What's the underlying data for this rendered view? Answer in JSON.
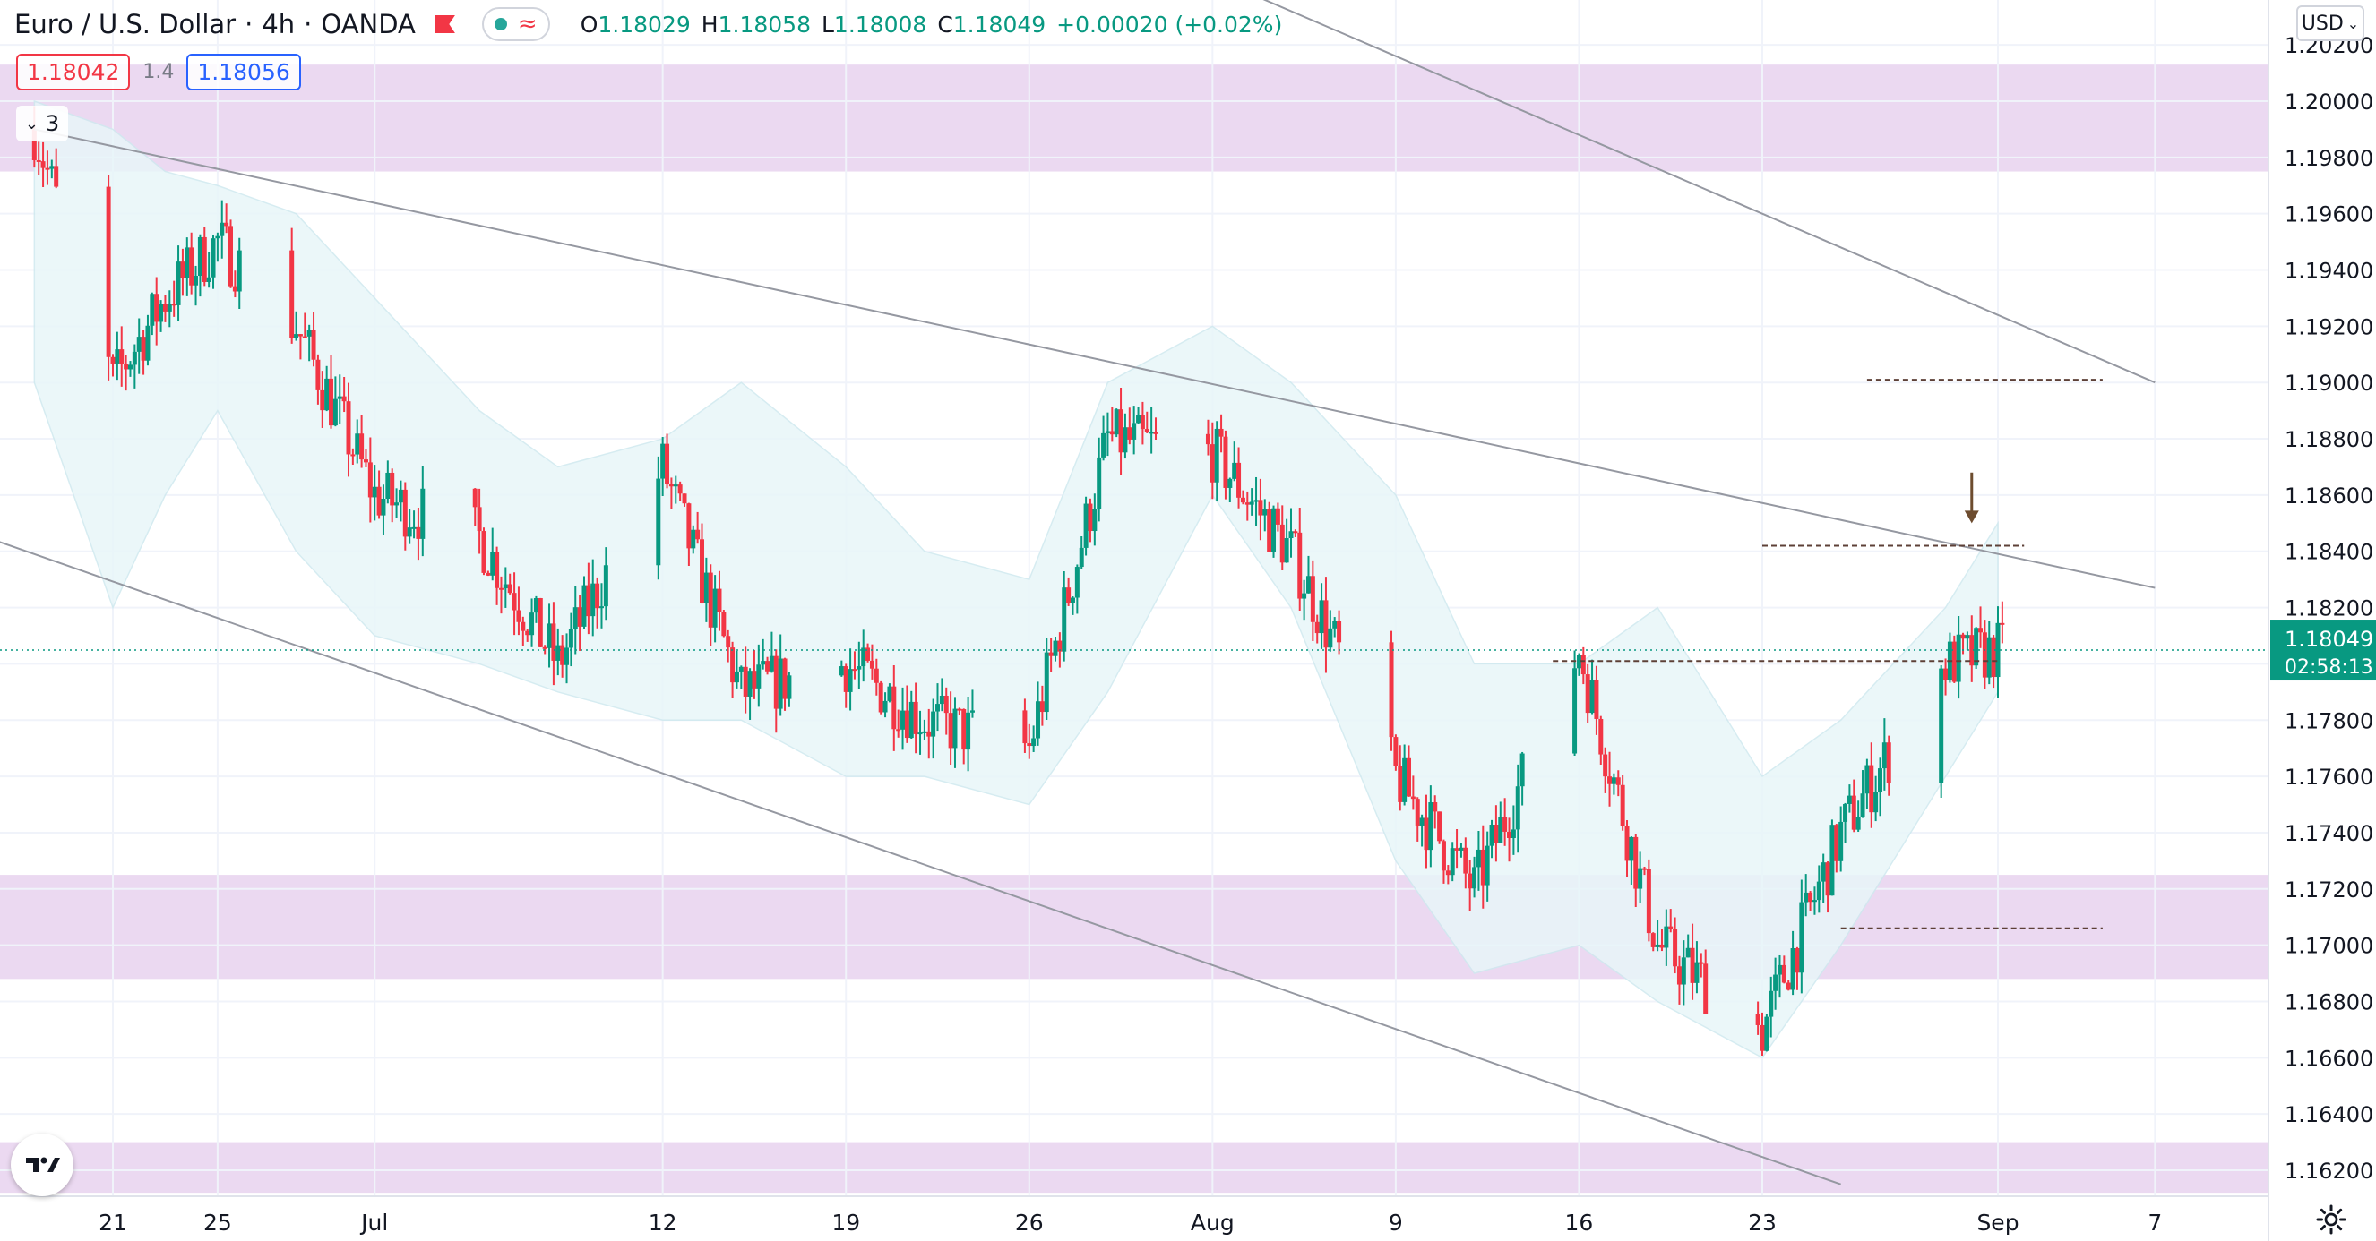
{
  "header": {
    "symbol": "Euro / U.S. Dollar",
    "interval": "4h",
    "broker": "OANDA",
    "ohlc": {
      "o_label": "O",
      "o": "1.18029",
      "h_label": "H",
      "h": "1.18058",
      "l_label": "L",
      "l": "1.18008",
      "c_label": "C",
      "c": "1.18049",
      "change": "+0.00020 (+0.02%)"
    }
  },
  "quote": {
    "sell": "1.18042",
    "spread": "1.4",
    "buy": "1.18056"
  },
  "indicators": {
    "collapsed_count": "3"
  },
  "currency": "USD",
  "colors": {
    "up": "#089981",
    "down": "#f23645",
    "zone": "#e9d5ef",
    "band": "#e8f6f9",
    "text": "#131722",
    "axis": "#787b86"
  },
  "icons": {
    "logo": "tradingview-logo-icon",
    "settings": "gear-icon",
    "flag": "flag-icon",
    "collapse": "chevron-down-icon"
  },
  "chart_data": {
    "type": "candlestick",
    "y_ticks": [
      "1.16200",
      "1.16400",
      "1.16600",
      "1.16800",
      "1.17000",
      "1.17200",
      "1.17400",
      "1.17600",
      "1.17800",
      "1.18000",
      "1.18200",
      "1.18400",
      "1.18600",
      "1.18800",
      "1.19000",
      "1.19200",
      "1.19400",
      "1.19600",
      "1.19800",
      "1.20000",
      "1.20200"
    ],
    "x_ticks": [
      {
        "label": "21",
        "date": "2021-06-21"
      },
      {
        "label": "25",
        "date": "2021-06-25"
      },
      {
        "label": "Jul",
        "date": "2021-07-01"
      },
      {
        "label": "12",
        "date": "2021-07-12"
      },
      {
        "label": "19",
        "date": "2021-07-19"
      },
      {
        "label": "26",
        "date": "2021-07-26"
      },
      {
        "label": "Aug",
        "date": "2021-08-02"
      },
      {
        "label": "9",
        "date": "2021-08-09"
      },
      {
        "label": "16",
        "date": "2021-08-16"
      },
      {
        "label": "23",
        "date": "2021-08-23"
      },
      {
        "label": "Sep",
        "date": "2021-09-01"
      },
      {
        "label": "7",
        "date": "2021-09-07"
      }
    ],
    "last_price": "1.18049",
    "countdown": "02:58:13",
    "zones": [
      {
        "from": 1.1975,
        "to": 1.2013
      },
      {
        "from": 1.1688,
        "to": 1.1725
      },
      {
        "from": 1.1612,
        "to": 1.163
      }
    ],
    "trendlines": [
      {
        "from": [
          "2021-06-18",
          1.199
        ],
        "to": [
          "2021-09-07",
          1.1827
        ]
      },
      {
        "from": [
          "2021-06-14",
          1.1852
        ],
        "to": [
          "2021-08-26",
          1.1615
        ]
      },
      {
        "from": [
          "2021-07-24",
          1.208
        ],
        "to": [
          "2021-09-07",
          1.19
        ]
      }
    ],
    "horizontal_levels": [
      {
        "price": 1.1901,
        "from": "2021-08-27",
        "to": "2021-09-05"
      },
      {
        "price": 1.1842,
        "from": "2021-08-23",
        "to": "2021-09-02"
      },
      {
        "price": 1.1801,
        "from": "2021-08-15",
        "to": "2021-09-01"
      },
      {
        "price": 1.1706,
        "from": "2021-08-26",
        "to": "2021-09-05"
      }
    ],
    "arrow": {
      "date": "2021-08-31",
      "price_top": 1.1868,
      "price_bottom": 1.185
    },
    "bollinger": {
      "x": [
        "2021-06-18",
        "2021-06-21",
        "2021-06-23",
        "2021-06-25",
        "2021-06-28",
        "2021-07-01",
        "2021-07-05",
        "2021-07-08",
        "2021-07-12",
        "2021-07-15",
        "2021-07-19",
        "2021-07-22",
        "2021-07-26",
        "2021-07-29",
        "2021-08-02",
        "2021-08-05",
        "2021-08-09",
        "2021-08-12",
        "2021-08-16",
        "2021-08-19",
        "2021-08-23",
        "2021-08-26",
        "2021-08-30",
        "2021-09-01"
      ],
      "upper": [
        1.2,
        1.199,
        1.1975,
        1.197,
        1.196,
        1.193,
        1.189,
        1.187,
        1.188,
        1.19,
        1.187,
        1.184,
        1.183,
        1.19,
        1.192,
        1.19,
        1.186,
        1.18,
        1.18,
        1.182,
        1.176,
        1.178,
        1.182,
        1.185
      ],
      "lower": [
        1.19,
        1.182,
        1.186,
        1.189,
        1.184,
        1.181,
        1.18,
        1.179,
        1.178,
        1.178,
        1.176,
        1.176,
        1.175,
        1.179,
        1.186,
        1.182,
        1.173,
        1.169,
        1.17,
        1.168,
        1.166,
        1.17,
        1.176,
        1.179
      ]
    },
    "candles": {
      "x": [
        "2021-06-18",
        "2021-06-21",
        "2021-06-23",
        "2021-06-25",
        "2021-06-28",
        "2021-07-01",
        "2021-07-05",
        "2021-07-08",
        "2021-07-12",
        "2021-07-15",
        "2021-07-19",
        "2021-07-22",
        "2021-07-26",
        "2021-07-29",
        "2021-08-02",
        "2021-08-05",
        "2021-08-09",
        "2021-08-12",
        "2021-08-16",
        "2021-08-19",
        "2021-08-23",
        "2021-08-26",
        "2021-08-30",
        "2021-09-01"
      ],
      "close": [
        1.199,
        1.19,
        1.193,
        1.195,
        1.192,
        1.186,
        1.1845,
        1.18,
        1.187,
        1.179,
        1.18,
        1.178,
        1.177,
        1.188,
        1.1875,
        1.184,
        1.176,
        1.172,
        1.1805,
        1.17,
        1.167,
        1.174,
        1.18,
        1.18049
      ]
    }
  }
}
